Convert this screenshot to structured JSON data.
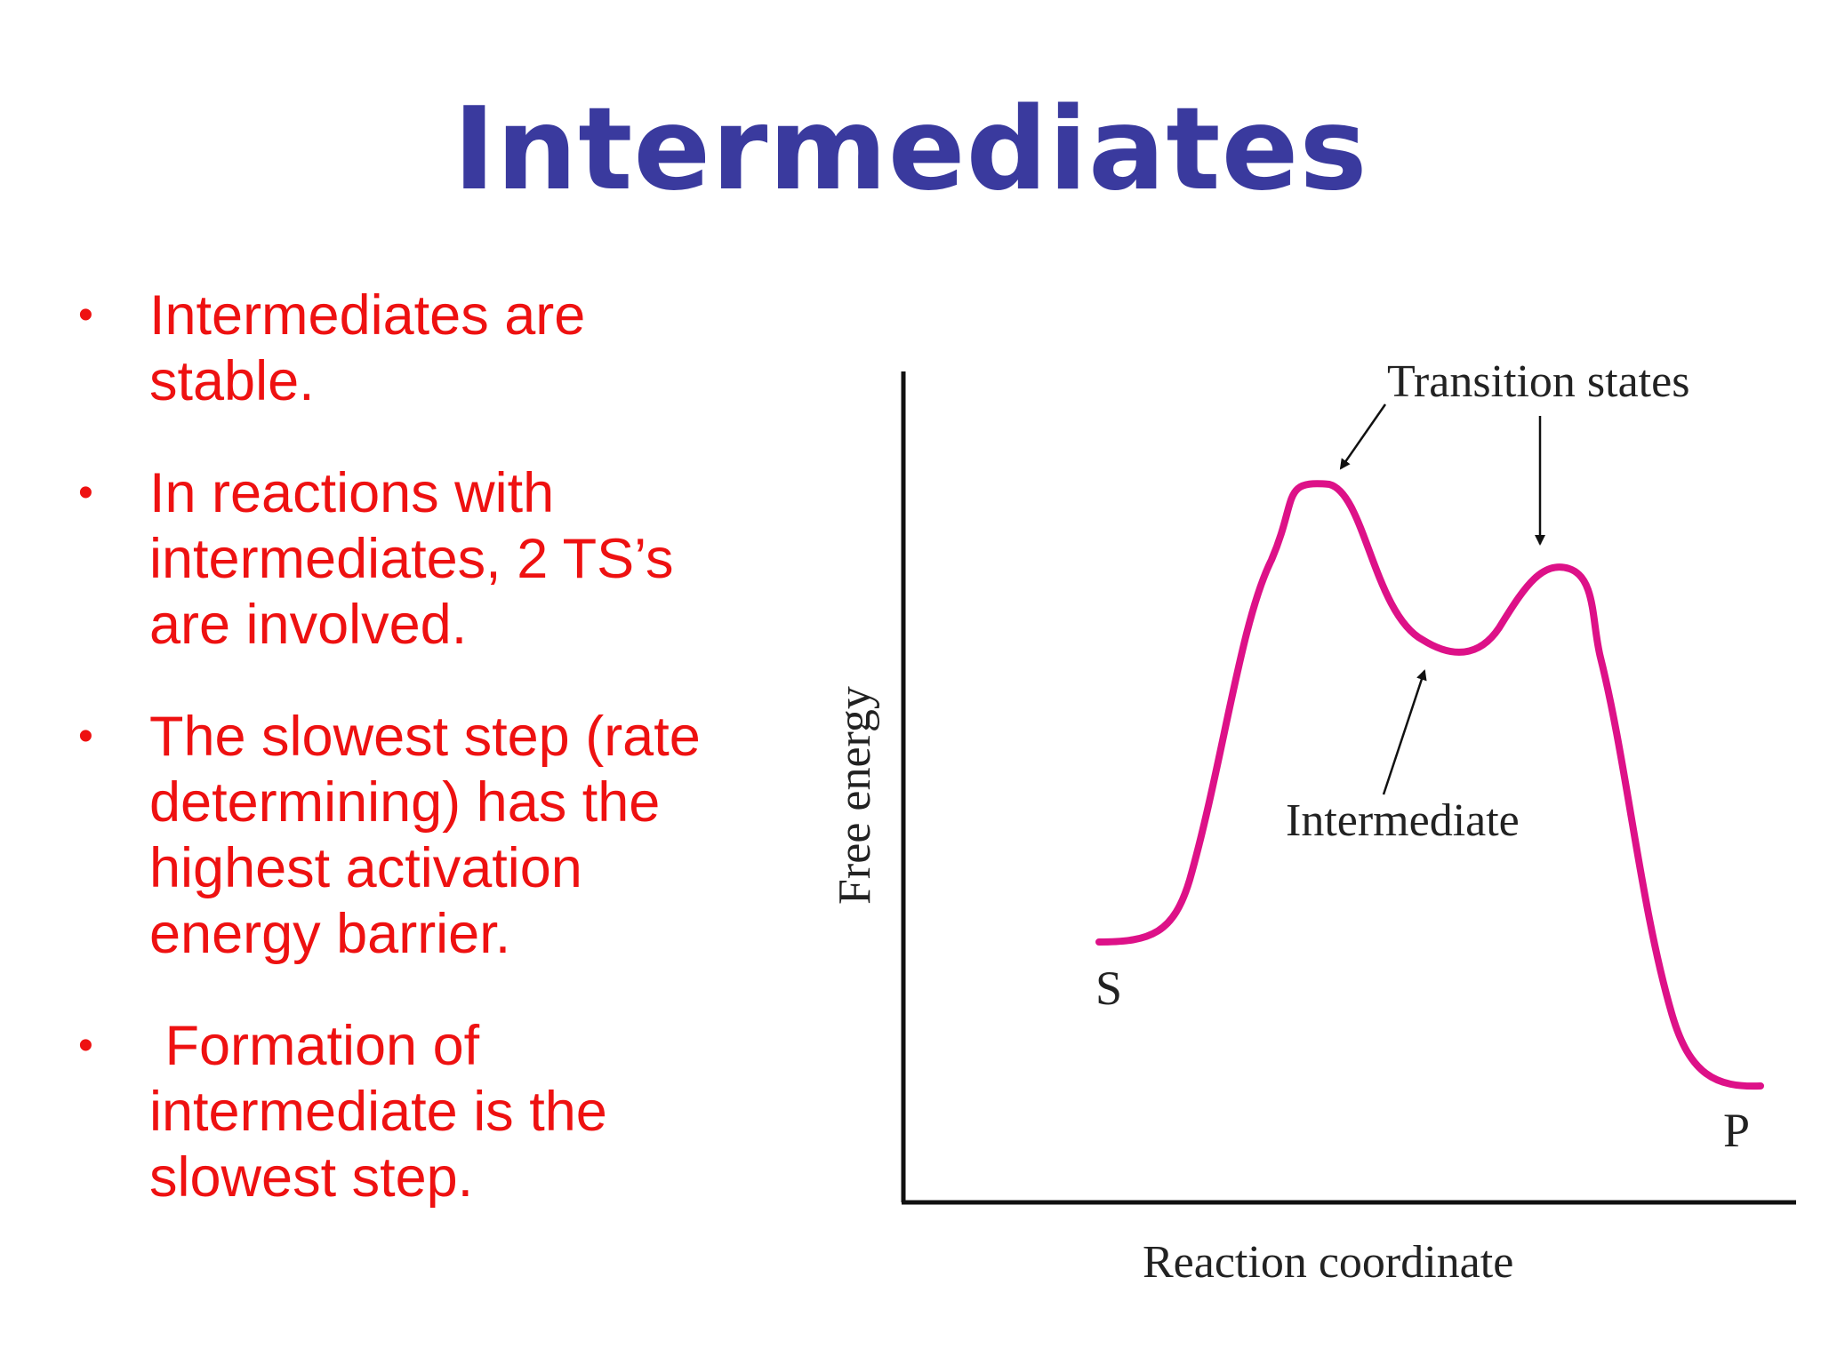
{
  "slide": {
    "title": "Intermediates",
    "bullets": [
      {
        "lines": [
          "Intermediates are",
          "stable."
        ]
      },
      {
        "lines": [
          "In reactions with",
          "intermediates, 2 TS’s",
          "are involved."
        ]
      },
      {
        "lines": [
          "The slowest step (rate",
          "determining) has the",
          "highest activation",
          "energy barrier."
        ]
      },
      {
        "lines": [
          " Formation of",
          "intermediate is the",
          "slowest step."
        ]
      }
    ]
  },
  "diagram": {
    "y_axis_label": "Free energy",
    "x_axis_label": "Reaction coordinate",
    "annotations": {
      "transition_states": "Transition states",
      "intermediate": "Intermediate",
      "substrate": "S",
      "product": "P"
    },
    "colors": {
      "title": "#3a3a9e",
      "bullets": "#ee1111",
      "curve": "#dd1188",
      "axes": "#111111"
    }
  }
}
